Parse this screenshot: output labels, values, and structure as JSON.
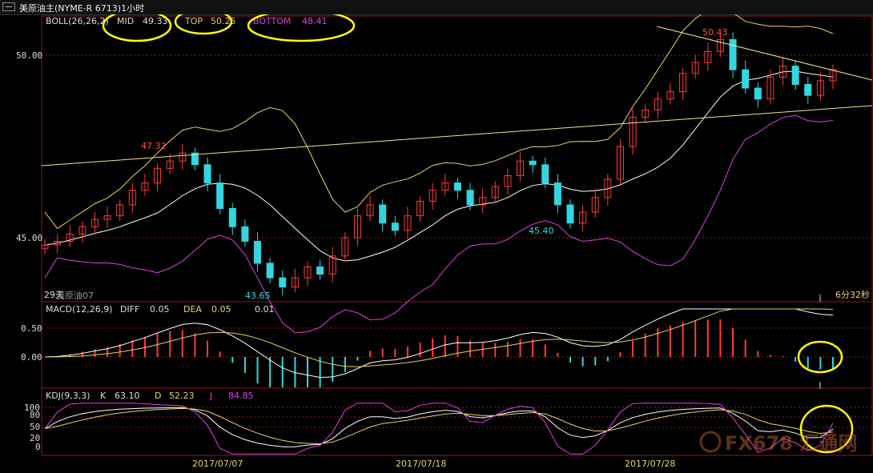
{
  "window": {
    "title": "美原油主(NYME-R 6713)1小时"
  },
  "panels": {
    "boll": {
      "name": "BOLL(26,26,2)",
      "mid_label": "MID",
      "mid_value": "49.33",
      "top_label": "TOP",
      "top_value": "50.25",
      "bottom_label": "BOTTOM",
      "bottom_value": "48.41",
      "price_ticks": [
        "50.00",
        "45.00"
      ],
      "annotations": [
        "47.32",
        "43.65",
        "45.40",
        "50.43"
      ],
      "left_note": "29天",
      "left_note2": "美原油07",
      "right_note": "6分32秒"
    },
    "macd": {
      "name": "MACD(12,26,9)",
      "diff_label": "DIFF",
      "diff_value": "0.05",
      "dea_label": "DEA",
      "dea_value": "0.05",
      "macd_value": "0.01",
      "ticks": [
        "0.50",
        "0.00"
      ]
    },
    "kdj": {
      "name": "KDJ(9,3,3)",
      "k_label": "K",
      "k_value": "63.10",
      "d_label": "D",
      "d_value": "52.23",
      "j_label": "J",
      "j_value": "84.85",
      "ticks": [
        "100",
        "80",
        "50",
        "20",
        "0"
      ]
    }
  },
  "x_axis": [
    "2017/07/07",
    "2017/07/18",
    "2017/07/28"
  ],
  "watermark": "FX678 汇通网",
  "colors": {
    "up": "#ff3b3b",
    "down": "#33d6e0",
    "mid": "#ffffff",
    "band": "#e6d46a",
    "bottom_band": "#e040e0",
    "trend": "#f0e68c",
    "highlight": "#ffff00",
    "grid": "#8b1a1a"
  },
  "chart_data": {
    "type": "candlestick",
    "price_axis": {
      "ticks": [
        50.0,
        45.0
      ],
      "range_approx": [
        42.5,
        51.2
      ]
    },
    "close_series_approx": [
      44.8,
      44.9,
      45.1,
      45.3,
      45.5,
      45.6,
      45.9,
      46.3,
      46.5,
      46.9,
      47.1,
      47.32,
      47.0,
      46.5,
      45.8,
      45.3,
      44.9,
      44.3,
      43.9,
      43.65,
      43.9,
      44.2,
      44.0,
      44.5,
      45.0,
      45.6,
      45.9,
      45.4,
      45.2,
      45.6,
      46.0,
      46.3,
      46.5,
      46.3,
      45.9,
      46.1,
      46.4,
      46.7,
      47.1,
      47.0,
      46.5,
      45.9,
      45.4,
      45.7,
      46.1,
      46.6,
      47.5,
      48.3,
      48.5,
      48.8,
      49.0,
      49.5,
      49.8,
      50.1,
      50.43,
      49.6,
      49.1,
      48.8,
      49.4,
      49.7,
      49.2,
      48.9,
      49.3,
      49.6
    ],
    "annotated_points": [
      {
        "label": "47.32",
        "type": "local_high",
        "value": 47.32
      },
      {
        "label": "43.65",
        "type": "local_low",
        "value": 43.65
      },
      {
        "label": "45.40",
        "type": "local_low",
        "value": 45.4
      },
      {
        "label": "50.43",
        "type": "local_high",
        "value": 50.43
      }
    ],
    "indicators": {
      "BOLL": {
        "params": "26,26,2",
        "MID": 49.33,
        "TOP": 50.25,
        "BOTTOM": 48.41
      },
      "MACD": {
        "params": "12,26,9",
        "DIFF": 0.05,
        "DEA": 0.05,
        "MACD": 0.01,
        "ticks": [
          0.5,
          0.0
        ]
      },
      "KDJ": {
        "params": "9,3,3",
        "K": 63.1,
        "D": 52.23,
        "J": 84.85,
        "ticks": [
          100,
          80,
          50,
          20,
          0
        ]
      }
    },
    "x_labels": [
      "2017/07/07",
      "2017/07/18",
      "2017/07/28"
    ],
    "grid": true
  }
}
